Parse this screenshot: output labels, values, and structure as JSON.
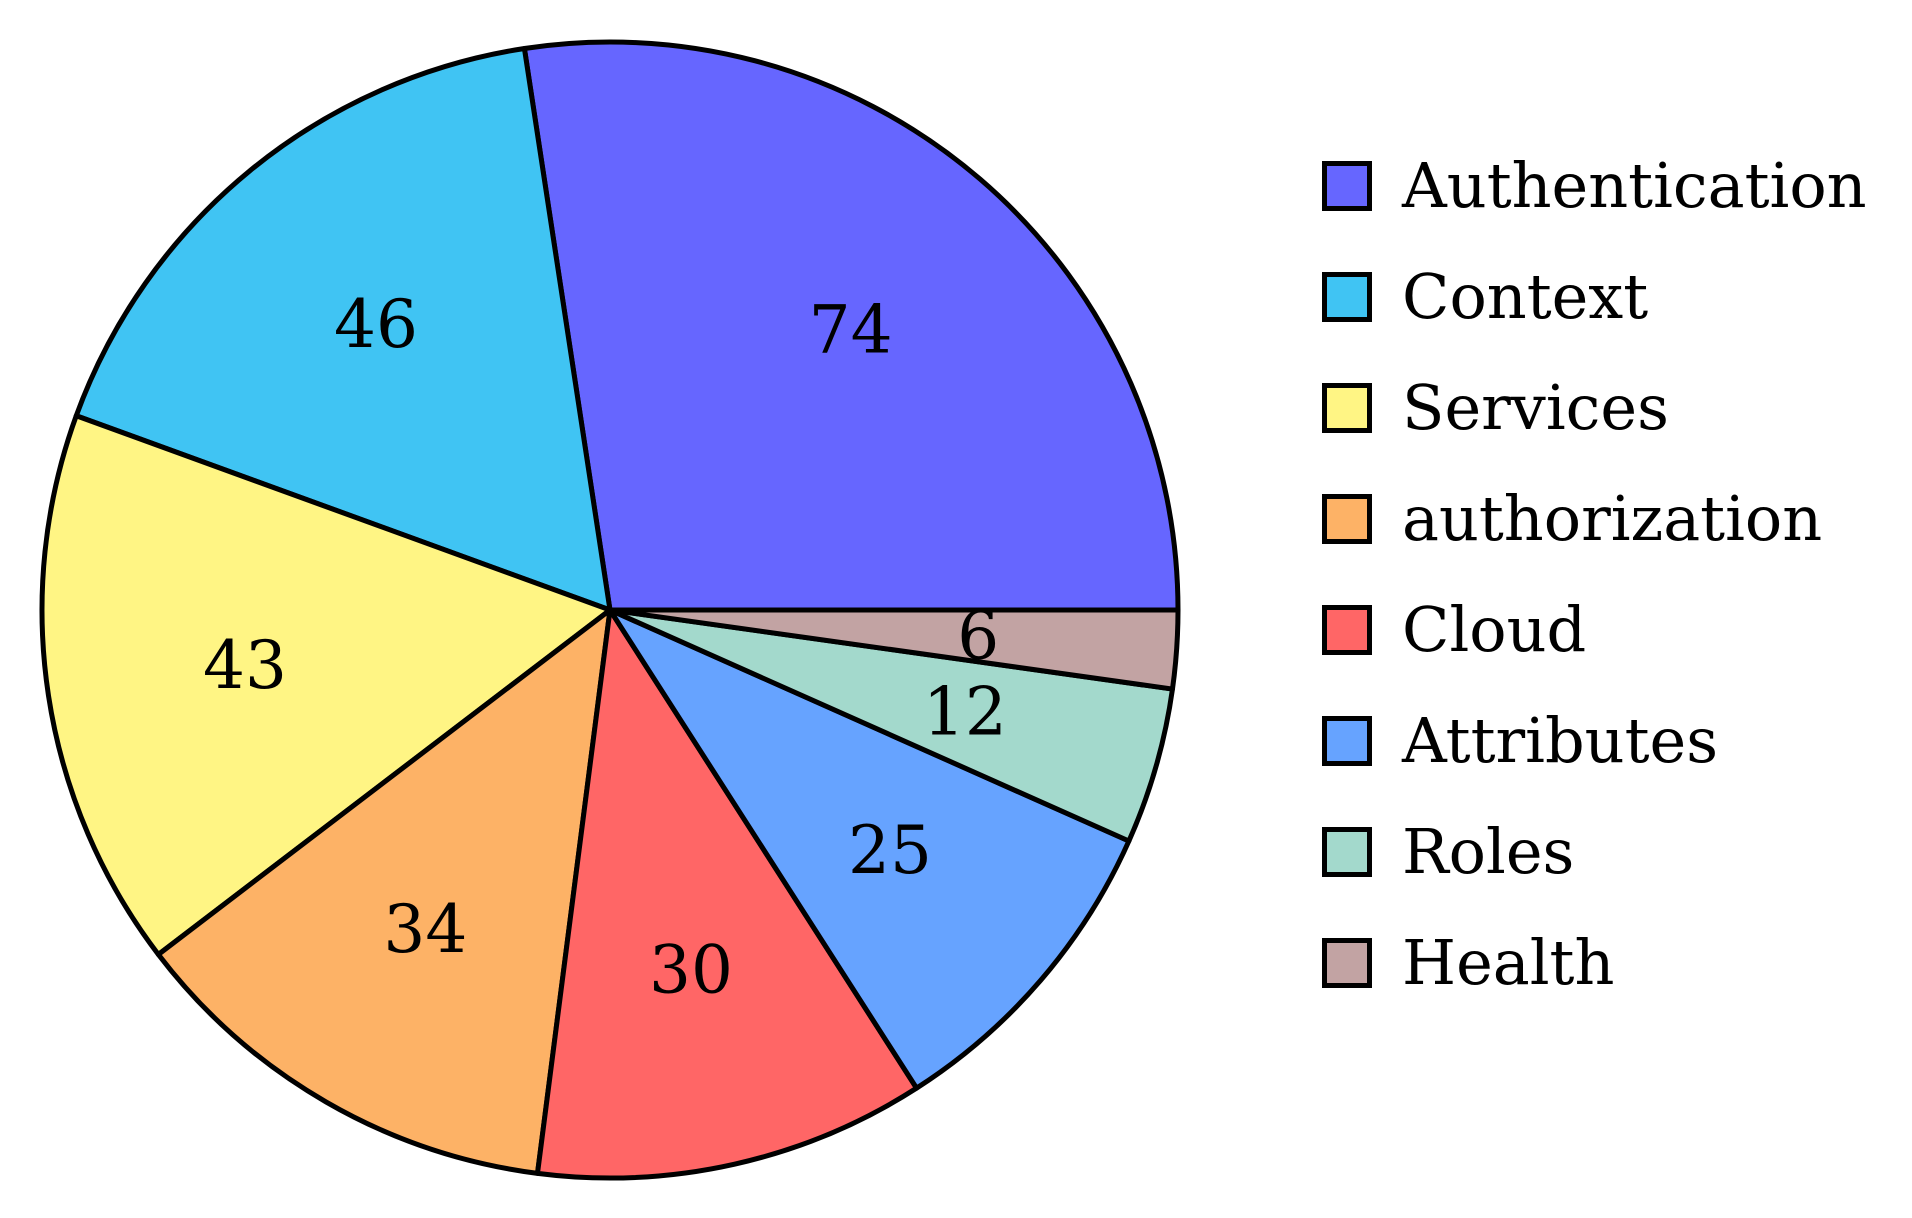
{
  "chart_data": {
    "type": "pie",
    "title": "",
    "start_angle_deg": 0,
    "direction": "counterclockwise",
    "slices": [
      {
        "label": "Authentication",
        "value": 74,
        "color": "#6666ff"
      },
      {
        "label": "Context",
        "value": 46,
        "color": "#40c4f3"
      },
      {
        "label": "Services",
        "value": 43,
        "color": "#fff584"
      },
      {
        "label": "authorization",
        "value": 34,
        "color": "#fdb266"
      },
      {
        "label": "Cloud",
        "value": 30,
        "color": "#ff6666"
      },
      {
        "label": "Attributes",
        "value": 25,
        "color": "#66a3ff"
      },
      {
        "label": "Roles",
        "value": 12,
        "color": "#a3d9cc"
      },
      {
        "label": "Health",
        "value": 6,
        "color": "#c2a3a3"
      }
    ],
    "legend": {
      "position": "right"
    },
    "data_labels": "values"
  }
}
